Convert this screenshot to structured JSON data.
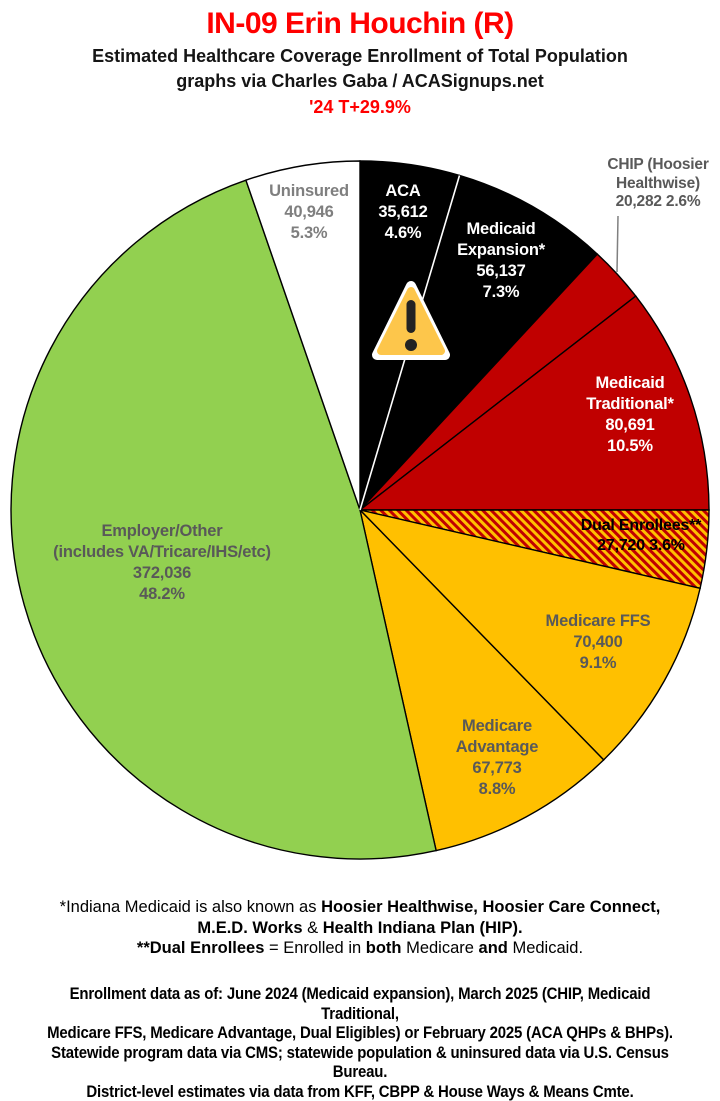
{
  "header": {
    "title": "IN-09 Erin Houchin (R)",
    "subtitle1": "Estimated Healthcare Coverage Enrollment of Total Population",
    "subtitle2": "graphs via Charles Gaba / ACASignups.net",
    "trend": "'24 T+29.9%"
  },
  "colors": {
    "title_red": "#FF0000",
    "slice_black": "#000000",
    "slice_dark_red": "#C00000",
    "slice_gold": "#FFC000",
    "slice_green": "#92D050",
    "slice_white": "#FFFFFF",
    "label_gray": "#7F7F7F",
    "label_dark_gray": "#595959",
    "warning_amber": "#FDC64B"
  },
  "chart_data": {
    "type": "pie",
    "title": "Estimated Healthcare Coverage Enrollment of Total Population",
    "units": "people",
    "start_angle_deg": 0,
    "direction": "clockwise",
    "stroke_color": "#000000",
    "hatch": {
      "bg": "#C00000",
      "stripe": "#FFC000"
    },
    "white_divider_after_slice": 0,
    "slices": [
      {
        "id": "aca",
        "label": "ACA",
        "value": 35612,
        "display_value": "35,612",
        "pct": 4.6,
        "color": "#000000"
      },
      {
        "id": "medicaid-expansion",
        "label": "Medicaid Expansion*",
        "value": 56137,
        "display_value": "56,137",
        "pct": 7.3,
        "color": "#000000"
      },
      {
        "id": "chip",
        "label": "CHIP (Hoosier Healthwise)",
        "value": 20282,
        "display_value": "20,282",
        "pct": 2.6,
        "color": "#C00000"
      },
      {
        "id": "medicaid-traditional",
        "label": "Medicaid Traditional*",
        "value": 80691,
        "display_value": "80,691",
        "pct": 10.5,
        "color": "#C00000"
      },
      {
        "id": "dual-enrollees",
        "label": "Dual Enrollees**",
        "value": 27720,
        "display_value": "27,720",
        "pct": 3.6,
        "color": "hatch"
      },
      {
        "id": "medicare-ffs",
        "label": "Medicare FFS",
        "value": 70400,
        "display_value": "70,400",
        "pct": 9.1,
        "color": "#FFC000"
      },
      {
        "id": "medicare-advantage",
        "label": "Medicare Advantage",
        "value": 67773,
        "display_value": "67,773",
        "pct": 8.8,
        "color": "#FFC000"
      },
      {
        "id": "employer-other",
        "label": "Employer/Other (includes VA/Tricare/IHS/etc)",
        "value": 372036,
        "display_value": "372,036",
        "pct": 48.2,
        "color": "#92D050"
      },
      {
        "id": "uninsured",
        "label": "Uninsured",
        "value": 40946,
        "display_value": "40,946",
        "pct": 5.3,
        "color": "#FFFFFF"
      }
    ]
  },
  "slice_labels": {
    "uninsured": {
      "lines": [
        "Uninsured",
        "40,946",
        "5.3%"
      ]
    },
    "aca": {
      "lines": [
        "ACA",
        "35,612",
        "4.6%"
      ]
    },
    "medicaid_expansion": {
      "lines": [
        "Medicaid",
        "Expansion*",
        "56,137",
        "7.3%"
      ]
    },
    "chip": {
      "lines": [
        "CHIP (Hoosier",
        "Healthwise)",
        "20,282 2.6%"
      ]
    },
    "medicaid_traditional": {
      "lines": [
        "Medicaid",
        "Traditional*",
        "80,691",
        "10.5%"
      ]
    },
    "dual_enrollees": {
      "lines": [
        "Dual Enrollees**",
        "27,720 3.6%"
      ]
    },
    "medicare_ffs": {
      "lines": [
        "Medicare FFS",
        "70,400",
        "9.1%"
      ]
    },
    "medicare_advantage": {
      "lines": [
        "Medicare",
        "Advantage",
        "67,773",
        "8.8%"
      ]
    },
    "employer_other": {
      "lines": [
        "Employer/Other",
        "(includes VA/Tricare/IHS/etc)",
        "372,036",
        "48.2%"
      ]
    }
  },
  "footnotes": {
    "medicaid_note_lines": [
      [
        {
          "t": "*Indiana Medicaid is also known as ",
          "b": false
        },
        {
          "t": "Hoosier Healthwise, Hoosier Care Connect,",
          "b": true
        }
      ],
      [
        {
          "t": "M.E.D. Works",
          "b": true
        },
        {
          "t": " & ",
          "b": false
        },
        {
          "t": "Health Indiana Plan (HIP).",
          "b": true
        }
      ],
      [
        {
          "t": "**Dual Enrollees",
          "b": true
        },
        {
          "t": " = Enrolled in ",
          "b": false
        },
        {
          "t": "both",
          "b": true
        },
        {
          "t": " Medicare ",
          "b": false
        },
        {
          "t": "and",
          "b": true
        },
        {
          "t": " Medicaid.",
          "b": false
        }
      ]
    ],
    "source_note_lines": [
      "Enrollment data as of: June 2024 (Medicaid expansion), March 2025 (CHIP, Medicaid Traditional,",
      "Medicare FFS, Medicare Advantage, Dual Eligibles) or February 2025 (ACA QHPs & BHPs).",
      "Statewide program data via CMS; statewide population & uninsured data via U.S. Census Bureau.",
      "District-level estimates via data from KFF, CBPP & House Ways & Means Cmte."
    ]
  }
}
